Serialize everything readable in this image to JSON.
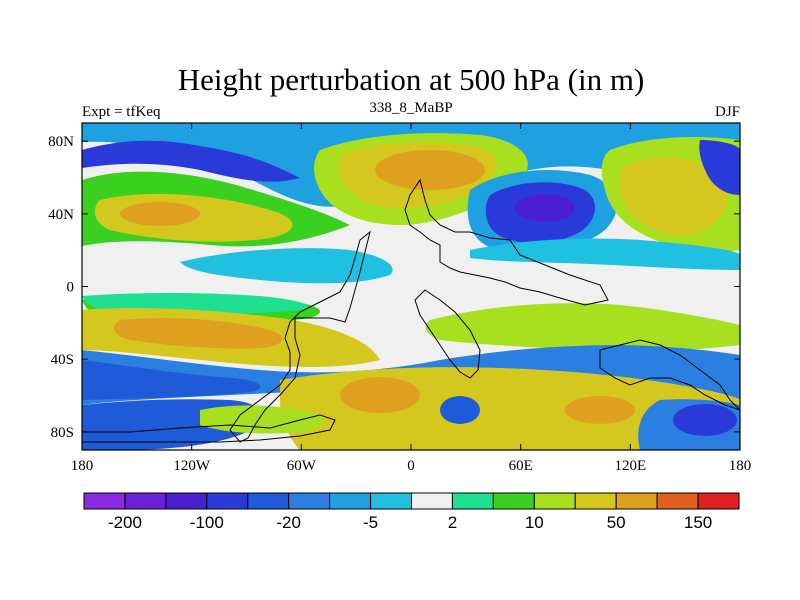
{
  "chart_data": {
    "type": "heatmap",
    "title": "Height perturbation at 500 hPa (in m)",
    "left_label": "Expt = tfKeq",
    "center_label": "338_8_MaBP",
    "right_label": "DJF",
    "x_ticks": [
      "180",
      "120W",
      "60W",
      "0",
      "60E",
      "120E",
      "180"
    ],
    "x_tick_values": [
      -180,
      -120,
      -60,
      0,
      60,
      120,
      180
    ],
    "y_ticks": [
      "80N",
      "40N",
      "0",
      "40S",
      "80S"
    ],
    "y_tick_values": [
      80,
      40,
      0,
      -40,
      -80
    ],
    "xlim": [
      -180,
      180
    ],
    "ylim": [
      -90,
      90
    ],
    "colorbar": {
      "colors": [
        "#8a2be2",
        "#6a1fd9",
        "#4a1fd0",
        "#2a3ad8",
        "#1f5ad8",
        "#2a7fe0",
        "#1fa0e0",
        "#1fc0e0",
        "#f0f0f0",
        "#1fe090",
        "#3ad01f",
        "#a8e01f",
        "#d4c81f",
        "#e0a01f",
        "#e0601f",
        "#e01f1f"
      ],
      "label_text": [
        "-200",
        "-100",
        "-20",
        "-5",
        "2",
        "10",
        "50",
        "150"
      ],
      "label_boundary_index": [
        1,
        3,
        5,
        7,
        9,
        11,
        13,
        15
      ]
    }
  }
}
